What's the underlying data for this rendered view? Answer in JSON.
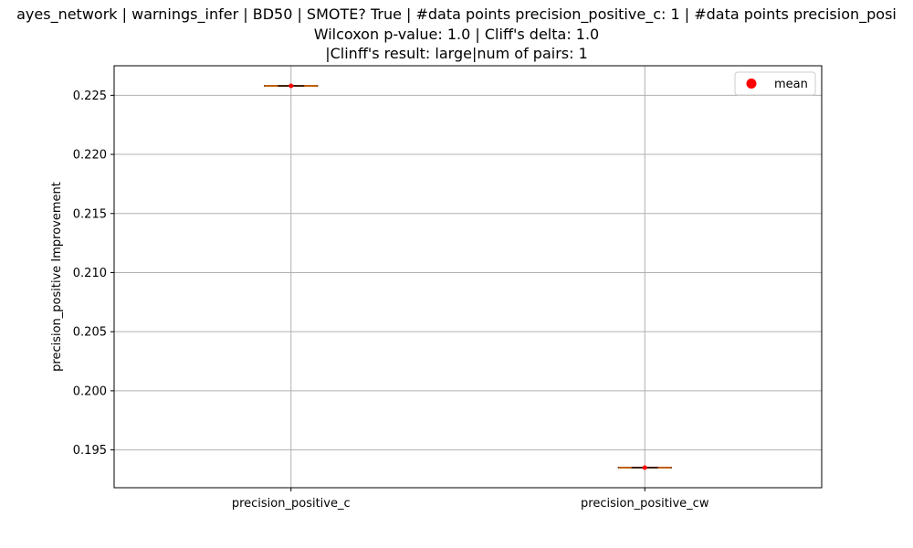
{
  "chart_data": {
    "type": "box",
    "title_lines": [
      "ayes_network | warnings_infer | BD50 | SMOTE? True | #data points precision_positive_c: 1 | #data points precision_posi",
      "Wilcoxon p-value: 1.0 | Cliff's delta: 1.0",
      "|Clinff's result: large|num of pairs: 1"
    ],
    "ylabel": "precision_positive Improvement",
    "categories": [
      "precision_positive_c",
      "precision_positive_cw"
    ],
    "values": [
      0.2258,
      0.1935
    ],
    "means": [
      0.2258,
      0.1935
    ],
    "ylim": [
      0.1918,
      0.2275
    ],
    "yticks": [
      0.195,
      0.2,
      0.205,
      0.21,
      0.215,
      0.22,
      0.225
    ],
    "ytick_labels": [
      "0.195",
      "0.200",
      "0.205",
      "0.210",
      "0.215",
      "0.220",
      "0.225"
    ],
    "grid": true,
    "legend": {
      "position": "top-right",
      "entries": [
        {
          "label": "mean",
          "color": "#ff0000"
        }
      ]
    },
    "colors": {
      "box": "#000000",
      "median": "#ff7f0e",
      "mean_marker": "#ff0000",
      "grid": "#b0b0b0"
    }
  }
}
